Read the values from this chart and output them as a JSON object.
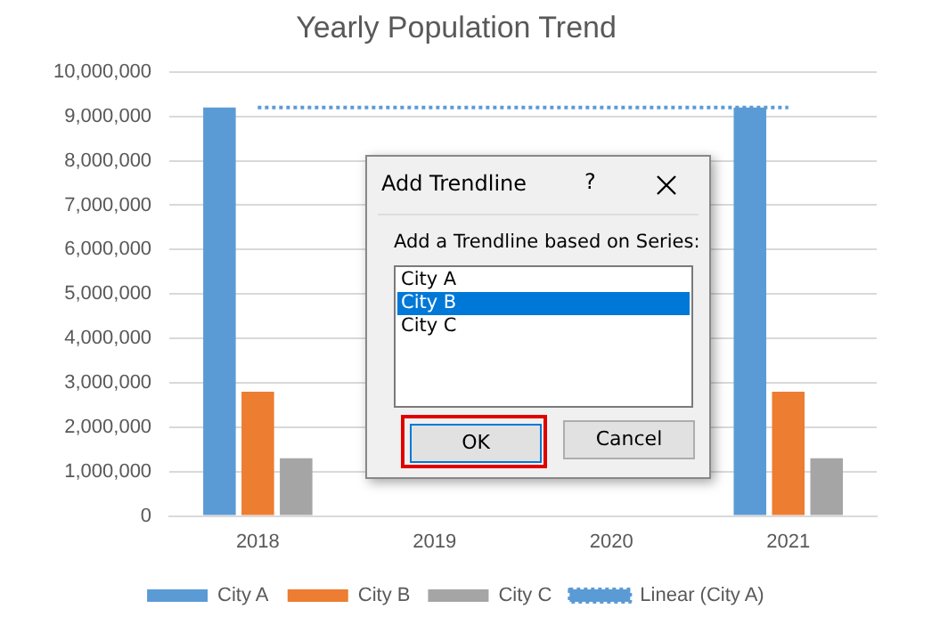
{
  "chart_data": {
    "type": "bar",
    "title": "Yearly Population Trend",
    "categories": [
      "2018",
      "2019",
      "2020",
      "2021"
    ],
    "series": [
      {
        "name": "City A",
        "color": "#5b9bd5",
        "values": [
          9200000,
          null,
          null,
          9200000
        ]
      },
      {
        "name": "City B",
        "color": "#ed7d31",
        "values": [
          2800000,
          null,
          null,
          2800000
        ]
      },
      {
        "name": "City C",
        "color": "#a5a5a5",
        "values": [
          1300000,
          null,
          null,
          1300000
        ]
      },
      {
        "name": "Linear (City A)",
        "type": "line",
        "color": "#5b9bd5",
        "line_style": "dotted",
        "marker": "none",
        "values": [
          9200000,
          9200000,
          9200000,
          9200000
        ]
      }
    ],
    "ylim": [
      0,
      10000000
    ],
    "yticks": [
      0,
      {
        "value": 1000000,
        "label": "1,000,000"
      },
      {
        "value": 2000000,
        "label": "2,000,000"
      },
      {
        "value": 3000000,
        "label": "3,000,000"
      },
      {
        "value": 4000000,
        "label": "4,000,000"
      },
      {
        "value": 5000000,
        "label": "5,000,000"
      },
      {
        "value": 6000000,
        "label": "6,000,000"
      },
      {
        "value": 7000000,
        "label": "7,000,000"
      },
      {
        "value": 8000000,
        "label": "8,000,000"
      },
      {
        "value": 9000000,
        "label": "9,000,000"
      },
      {
        "value": 10000000,
        "label": "10,000,000"
      }
    ],
    "grid": "y",
    "legend": "bottom",
    "annotations": [
      "Add Trendline",
      "?",
      "Add a Trendline based on Series:",
      "City A",
      "City B",
      "City C",
      "OK",
      "Cancel"
    ]
  }
}
